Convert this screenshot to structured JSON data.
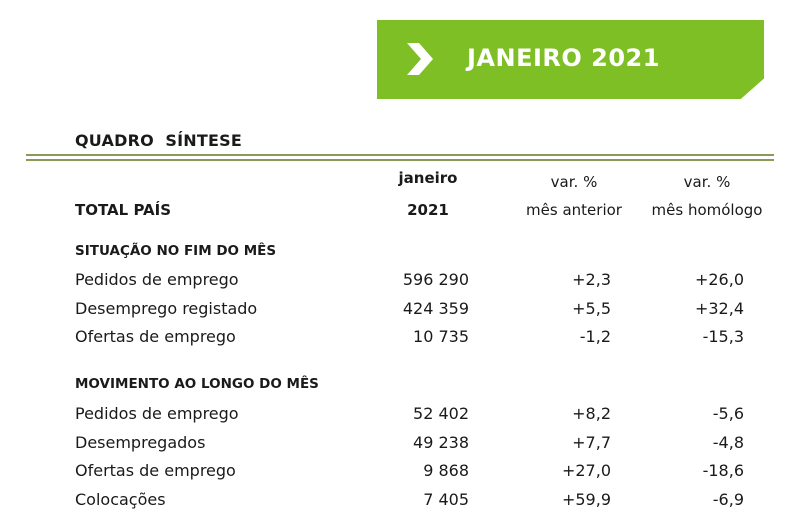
{
  "banner": {
    "title": "JANEIRO 2021",
    "color": "#7fbf26",
    "icon": "chevron-right-icon"
  },
  "quadro_title": "QUADRO  SÍNTESE",
  "header": {
    "row_label": "TOTAL PAÍS",
    "col1_line1": "janeiro",
    "col1_line2": "2021",
    "col2_line1": "var. %",
    "col2_line2": "mês anterior",
    "col3_line1": "var. %",
    "col3_line2": "mês homólogo"
  },
  "sections": [
    {
      "title": "SITUAÇÃO NO FIM DO MÊS",
      "rows": [
        {
          "label": "Pedidos de emprego",
          "value": "596 290",
          "var_month": "+2,3",
          "var_year": "+26,0"
        },
        {
          "label": "Desemprego registado",
          "value": "424 359",
          "var_month": "+5,5",
          "var_year": "+32,4"
        },
        {
          "label": "Ofertas de emprego",
          "value": "10 735",
          "var_month": "-1,2",
          "var_year": "-15,3"
        }
      ]
    },
    {
      "title": "MOVIMENTO AO LONGO DO MÊS",
      "rows": [
        {
          "label": "Pedidos de emprego",
          "value": "52 402",
          "var_month": "+8,2",
          "var_year": "-5,6"
        },
        {
          "label": "Desempregados",
          "value": "49 238",
          "var_month": "+7,7",
          "var_year": "-4,8"
        },
        {
          "label": "Ofertas de emprego",
          "value": "9 868",
          "var_month": "+27,0",
          "var_year": "-18,6"
        },
        {
          "label": "Colocações",
          "value": "7 405",
          "var_month": "+59,9",
          "var_year": "-6,9"
        }
      ]
    }
  ]
}
